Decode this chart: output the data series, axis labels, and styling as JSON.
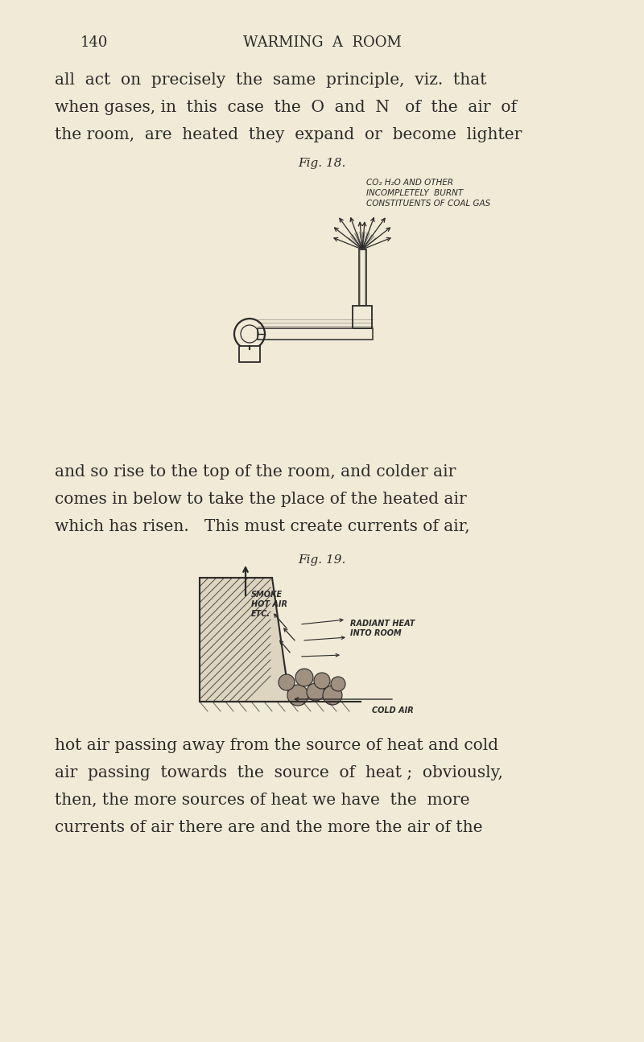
{
  "bg_color": "#f0ead6",
  "text_color": "#2a2a2a",
  "page_number": "140",
  "page_header": "WARMING  A  ROOM",
  "para1_lines": [
    "all  act  on  precisely  the  same  principle,  viz.  that",
    "when gases, in  this  case  the  O  and  N   of  the  air  of",
    "the room,  are  heated  they  expand  or  become  lighter"
  ],
  "fig18_caption": "Fig. 18.",
  "fig18_label_line1": "CO₂ H₂O AND OTHER",
  "fig18_label_line2": "INCOMPLETELY  BURNT",
  "fig18_label_line3": "CONSTITUENTS OF COAL GAS",
  "para2_lines": [
    "and so rise to the top of the room, and colder air",
    "comes in below to take the place of the heated air",
    "which has risen.   This must create currents of air,"
  ],
  "fig19_caption": "Fig. 19.",
  "fig19_label_smoke_line1": "SMOKE",
  "fig19_label_smoke_line2": "HOT AIR",
  "fig19_label_smoke_line3": "ETC.",
  "fig19_label_radiant_line1": "RADIANT HEAT",
  "fig19_label_radiant_line2": "INTO ROOM",
  "fig19_label_cold": "COLD AIR",
  "para3_lines": [
    "hot air passing away from the source of heat and cold",
    "air  passing  towards  the  source  of  heat ;  obviously,",
    "then, the more sources of heat we have  the  more",
    "currents of air there are and the more the air of the"
  ]
}
